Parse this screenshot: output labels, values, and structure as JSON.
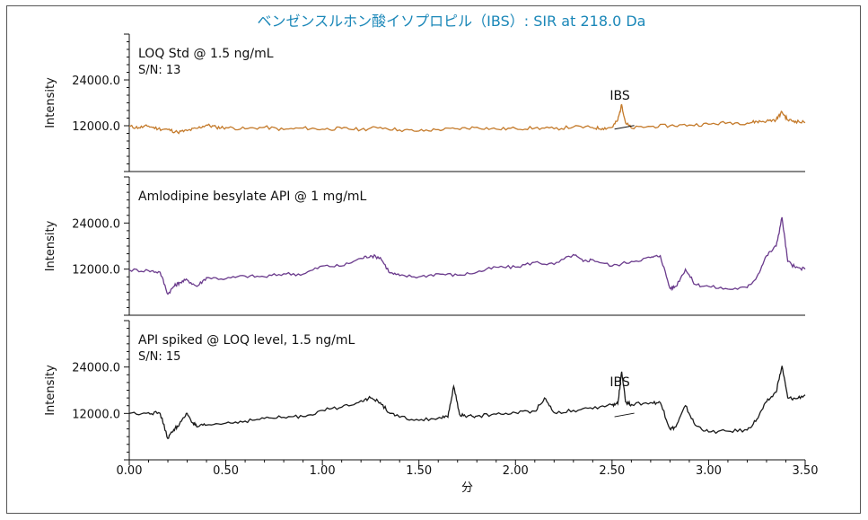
{
  "chart_data": {
    "type": "line",
    "title": "ベンゼンスルホン酸イソプロピル（IBS）: SIR at 218.0 Da",
    "xlabel": "分",
    "xlim": [
      0.0,
      3.5
    ],
    "x_ticks": [
      "0.00",
      "0.50",
      "1.00",
      "1.50",
      "2.00",
      "2.50",
      "3.00",
      "3.50"
    ],
    "grid": false,
    "panels": [
      {
        "label": "LOQ Std @ 1.5 ng/mL",
        "sn": "S/N: 13",
        "ylabel": "Intensity",
        "ylim": [
          0,
          36000
        ],
        "y_ticks": [
          "24000.0",
          "12000.0"
        ],
        "color": "#c47a2a",
        "annotation": "IBS",
        "annotation_x": 2.55,
        "series": {
          "x": [
            0.0,
            0.05,
            0.1,
            0.15,
            0.2,
            0.25,
            0.3,
            0.35,
            0.4,
            0.45,
            0.5,
            0.6,
            0.7,
            0.8,
            0.9,
            1.0,
            1.1,
            1.2,
            1.3,
            1.4,
            1.5,
            1.6,
            1.7,
            1.8,
            1.9,
            2.0,
            2.1,
            2.2,
            2.3,
            2.4,
            2.45,
            2.5,
            2.53,
            2.55,
            2.57,
            2.6,
            2.7,
            2.8,
            2.9,
            3.0,
            3.1,
            3.2,
            3.25,
            3.3,
            3.35,
            3.38,
            3.41,
            3.45,
            3.5
          ],
          "y": [
            11800,
            11500,
            11900,
            11200,
            11000,
            10300,
            10700,
            11300,
            12200,
            11600,
            11500,
            11200,
            11600,
            11000,
            11400,
            11100,
            11300,
            11000,
            11600,
            10900,
            10600,
            11000,
            11200,
            11600,
            11100,
            11300,
            11400,
            11200,
            11700,
            11500,
            11300,
            11600,
            13500,
            17500,
            12800,
            11400,
            11800,
            12000,
            12200,
            12400,
            12800,
            12700,
            13100,
            13200,
            13600,
            15600,
            13500,
            13200,
            12800
          ]
        }
      },
      {
        "label": "Amlodipine besylate API @ 1 mg/mL",
        "sn": "",
        "ylabel": "Intensity",
        "ylim": [
          0,
          36000
        ],
        "y_ticks": [
          "24000.0",
          "12000.0"
        ],
        "color": "#6a3a8c",
        "annotation": "",
        "series": {
          "x": [
            0.0,
            0.1,
            0.16,
            0.2,
            0.23,
            0.26,
            0.3,
            0.35,
            0.4,
            0.5,
            0.6,
            0.7,
            0.8,
            0.9,
            1.0,
            1.1,
            1.2,
            1.25,
            1.3,
            1.35,
            1.4,
            1.5,
            1.6,
            1.7,
            1.8,
            1.9,
            2.0,
            2.1,
            2.2,
            2.3,
            2.35,
            2.4,
            2.5,
            2.6,
            2.7,
            2.75,
            2.8,
            2.83,
            2.88,
            2.93,
            3.0,
            3.1,
            3.2,
            3.25,
            3.3,
            3.35,
            3.38,
            3.41,
            3.45,
            3.5
          ],
          "y": [
            11800,
            11600,
            11200,
            5500,
            7500,
            8500,
            9200,
            7500,
            9800,
            9500,
            10200,
            10000,
            10800,
            10700,
            12800,
            12800,
            14800,
            15500,
            15000,
            11000,
            10300,
            10000,
            10800,
            10400,
            11200,
            12500,
            12500,
            13800,
            13200,
            15800,
            14000,
            14500,
            12800,
            14000,
            15000,
            15500,
            7000,
            7500,
            12000,
            8000,
            7500,
            6800,
            7200,
            10000,
            15500,
            18000,
            25500,
            14000,
            12400,
            12000
          ]
        }
      },
      {
        "label": "API spiked @ LOQ level, 1.5 ng/mL",
        "sn": "S/N: 15",
        "ylabel": "Intensity",
        "ylim": [
          0,
          36000
        ],
        "y_ticks": [
          "24000.0",
          "12000.0"
        ],
        "color": "#1a1a1a",
        "annotation": "IBS",
        "annotation_x": 2.55,
        "series": {
          "x": [
            0.0,
            0.1,
            0.16,
            0.2,
            0.23,
            0.26,
            0.3,
            0.33,
            0.35,
            0.4,
            0.5,
            0.6,
            0.7,
            0.8,
            0.9,
            1.0,
            1.1,
            1.2,
            1.25,
            1.3,
            1.35,
            1.4,
            1.5,
            1.6,
            1.65,
            1.68,
            1.71,
            1.75,
            1.8,
            1.9,
            2.0,
            2.1,
            2.15,
            2.2,
            2.3,
            2.4,
            2.5,
            2.53,
            2.55,
            2.57,
            2.6,
            2.7,
            2.75,
            2.8,
            2.83,
            2.88,
            2.93,
            3.0,
            3.1,
            3.2,
            3.25,
            3.3,
            3.35,
            3.38,
            3.41,
            3.45,
            3.5
          ],
          "y": [
            12000,
            12200,
            12000,
            5500,
            7800,
            9200,
            12000,
            9500,
            8500,
            9000,
            9500,
            10000,
            10700,
            11000,
            11200,
            12800,
            13600,
            15300,
            16000,
            14800,
            12000,
            11000,
            10200,
            10800,
            11000,
            19000,
            11800,
            11200,
            11300,
            11800,
            12200,
            12600,
            16000,
            12200,
            12800,
            13200,
            14200,
            14500,
            22800,
            15000,
            14300,
            14800,
            14800,
            8000,
            8500,
            14000,
            9000,
            7200,
            7400,
            7700,
            10500,
            15000,
            17500,
            24300,
            16000,
            15800,
            16800
          ]
        }
      }
    ]
  }
}
